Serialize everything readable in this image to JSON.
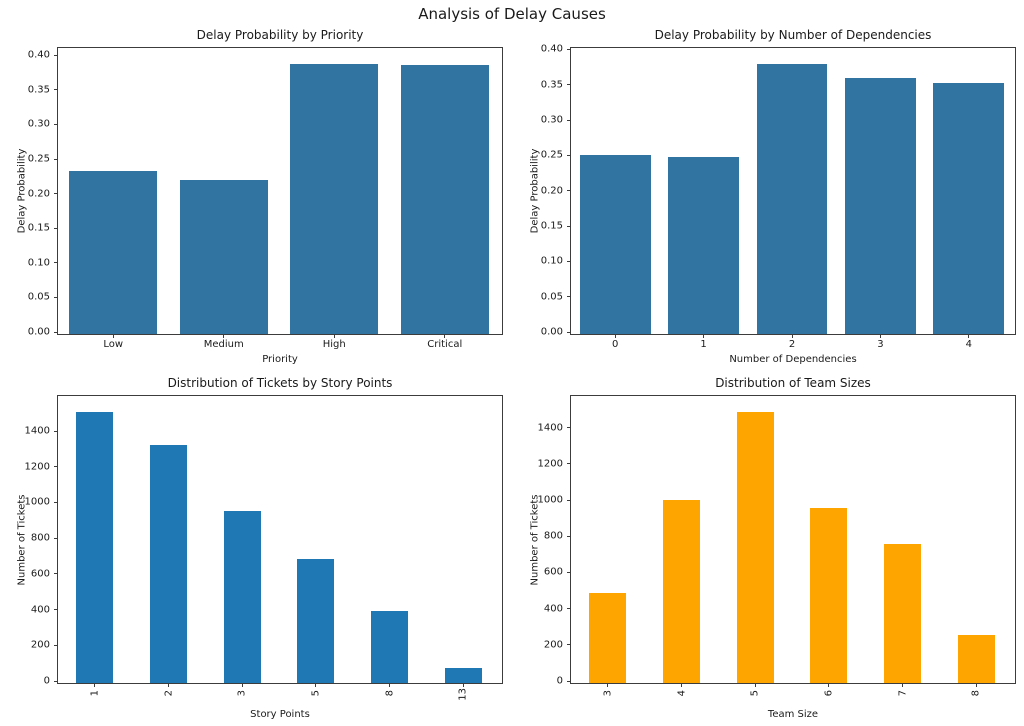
{
  "figure": {
    "title": "Analysis of Delay Causes"
  },
  "chart_data": [
    {
      "id": "delay-by-priority",
      "type": "bar",
      "title": "Delay Probability by Priority",
      "xlabel": "Priority",
      "ylabel": "Delay Probability",
      "categories": [
        "Low",
        "Medium",
        "High",
        "Critical"
      ],
      "values": [
        0.236,
        0.223,
        0.391,
        0.389
      ],
      "yticks": [
        "0.00",
        "0.05",
        "0.10",
        "0.15",
        "0.20",
        "0.25",
        "0.30",
        "0.35",
        "0.40"
      ],
      "ylim": [
        0,
        0.4106
      ],
      "bar_color": "#3274a1",
      "bar_frac": 0.8,
      "xtick_rotation": 0,
      "grid": false,
      "legend": "none"
    },
    {
      "id": "delay-by-dependencies",
      "type": "bar",
      "title": "Delay Probability by Number of Dependencies",
      "xlabel": "Number of Dependencies",
      "ylabel": "Delay Probability",
      "categories": [
        "0",
        "1",
        "2",
        "3",
        "4"
      ],
      "values": [
        0.253,
        0.251,
        0.383,
        0.362,
        0.356
      ],
      "yticks": [
        "0.00",
        "0.05",
        "0.10",
        "0.15",
        "0.20",
        "0.25",
        "0.30",
        "0.35",
        "0.40"
      ],
      "ylim": [
        0,
        0.4021
      ],
      "bar_color": "#3274a1",
      "bar_frac": 0.8,
      "xtick_rotation": 0,
      "grid": false,
      "legend": "none"
    },
    {
      "id": "tickets-by-story-points",
      "type": "bar",
      "title": "Distribution of Tickets by Story Points",
      "xlabel": "Story Points",
      "ylabel": "Number of Tickets",
      "categories": [
        "1",
        "2",
        "3",
        "5",
        "8",
        "13"
      ],
      "values": [
        1520,
        1335,
        965,
        695,
        405,
        85
      ],
      "yticks": [
        "0",
        "200",
        "400",
        "600",
        "800",
        "1000",
        "1200",
        "1400"
      ],
      "ylim": [
        0,
        1596
      ],
      "bar_color": "#1f77b4",
      "bar_frac": 0.5,
      "xtick_rotation": 90,
      "grid": false,
      "legend": "none"
    },
    {
      "id": "team-sizes",
      "type": "bar",
      "title": "Distribution of Team Sizes",
      "xlabel": "Team Size",
      "ylabel": "Number of Tickets",
      "categories": [
        "3",
        "4",
        "5",
        "6",
        "7",
        "8"
      ],
      "values": [
        495,
        1010,
        1500,
        965,
        770,
        265
      ],
      "yticks": [
        "0",
        "200",
        "400",
        "600",
        "800",
        "1000",
        "1200",
        "1400"
      ],
      "ylim": [
        0,
        1575
      ],
      "bar_color": "#ffa500",
      "bar_frac": 0.5,
      "xtick_rotation": 90,
      "grid": false,
      "legend": "none"
    }
  ]
}
